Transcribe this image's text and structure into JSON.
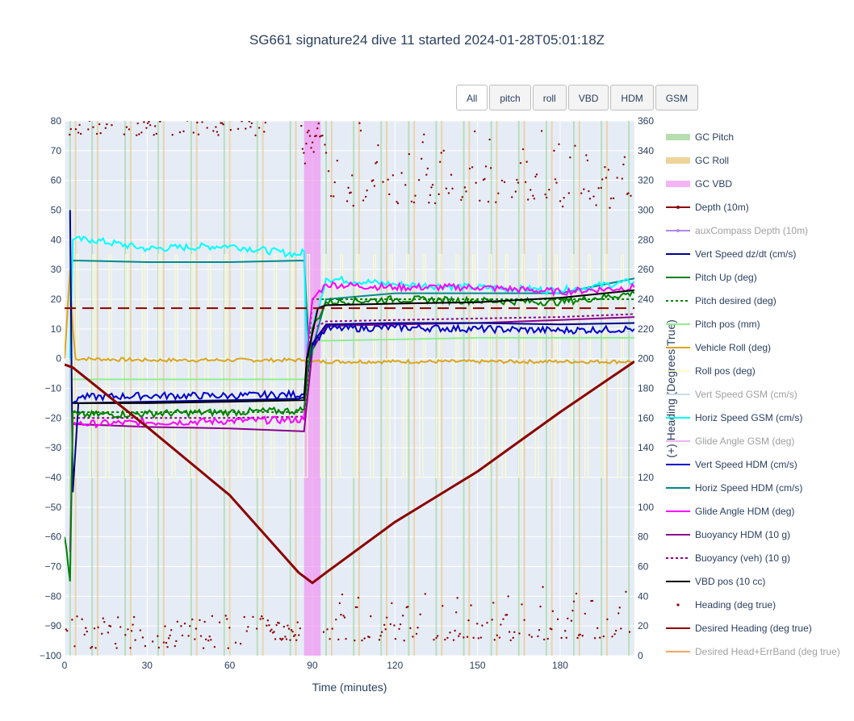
{
  "title": "SG661 signature24 dive 11 started 2024-01-28T05:01:18Z",
  "buttons": [
    "All",
    "pitch",
    "roll",
    "VBD",
    "HDM",
    "GSM"
  ],
  "chart_data": {
    "type": "line",
    "xlabel": "Time (minutes)",
    "ylabel": "",
    "y2label": "(+) Heading (Degrees True)",
    "xlim": [
      0,
      207
    ],
    "ylim": [
      -100,
      80
    ],
    "y2lim": [
      0,
      360
    ],
    "xticks": [
      "0",
      "30",
      "60",
      "90",
      "120",
      "150",
      "180"
    ],
    "xtick_values": [
      0,
      30,
      60,
      90,
      120,
      150,
      180
    ],
    "yticks": [
      "−100",
      "−90",
      "−80",
      "−70",
      "−60",
      "−50",
      "−40",
      "−30",
      "−20",
      "−10",
      "0",
      "10",
      "20",
      "30",
      "40",
      "50",
      "60",
      "70",
      "80"
    ],
    "ytick_values": [
      -100,
      -90,
      -80,
      -70,
      -60,
      -50,
      -40,
      -30,
      -20,
      -10,
      0,
      10,
      20,
      30,
      40,
      50,
      60,
      70,
      80
    ],
    "y2ticks": [
      "0",
      "20",
      "40",
      "60",
      "80",
      "100",
      "120",
      "140",
      "160",
      "180",
      "200",
      "220",
      "240",
      "260",
      "280",
      "300",
      "320",
      "340",
      "360"
    ],
    "y2tick_values": [
      0,
      20,
      40,
      60,
      80,
      100,
      120,
      140,
      160,
      180,
      200,
      220,
      240,
      260,
      280,
      300,
      320,
      340,
      360
    ],
    "grid": true,
    "legend_position": "right",
    "vbd_band": [
      87,
      93
    ],
    "series": [
      {
        "name": "GC Pitch",
        "color": "#a9d8a0",
        "style": "band",
        "x": [
          2,
          10,
          22,
          34,
          46,
          58,
          70,
          82,
          95,
          105,
          115,
          125,
          135,
          145,
          155,
          165,
          175,
          185,
          195,
          205
        ]
      },
      {
        "name": "GC Roll",
        "color": "#eccb8a",
        "style": "band",
        "x": [
          4,
          12,
          24,
          36,
          48,
          60,
          72,
          84,
          97,
          107,
          117,
          127,
          137,
          147,
          157,
          167,
          177,
          187,
          197
        ]
      },
      {
        "name": "GC VBD",
        "color": "#f08cf0",
        "style": "band",
        "x": [
          87,
          93
        ]
      },
      {
        "name": "Depth (10m)",
        "color": "#8b0000",
        "style": "line",
        "x": [
          0,
          3,
          30,
          60,
          85,
          90,
          95,
          120,
          150,
          180,
          207
        ],
        "y": [
          -2,
          -3,
          -23,
          -46,
          -72,
          -75.5,
          -72,
          -55,
          -38,
          -18,
          -1
        ]
      },
      {
        "name": "auxCompass Depth (10m)",
        "color": "#b088e8",
        "style": "line",
        "dim": true,
        "x": [
          0,
          3,
          30,
          60,
          85,
          90,
          95,
          120,
          150,
          180,
          207
        ],
        "y": [
          -2,
          -3,
          -23,
          -46,
          -72,
          -75.5,
          -72,
          -55,
          -38,
          -18,
          -1
        ]
      },
      {
        "name": "Vert Speed dz/dt (cm/s)",
        "color": "#00008b",
        "style": "line",
        "x": [
          2,
          3,
          5,
          30,
          60,
          85,
          87,
          88,
          90,
          95,
          120,
          150,
          180,
          207
        ],
        "y": [
          50,
          -45,
          -15,
          -14.5,
          -14,
          -13.5,
          -13,
          0,
          5,
          11.5,
          12,
          12,
          11.5,
          12
        ]
      },
      {
        "name": "Pitch Up (deg)",
        "color": "#008000",
        "style": "line",
        "x": [
          0,
          2,
          3,
          5,
          30,
          60,
          85,
          87,
          90,
          95,
          120,
          150,
          180,
          207
        ],
        "y": [
          -60,
          -75,
          -18,
          -19,
          -18.5,
          -18,
          -17.5,
          -17,
          10,
          19,
          20,
          19.5,
          19,
          22
        ]
      },
      {
        "name": "Pitch desired (deg)",
        "color": "#008000",
        "style": "dot",
        "x": [
          3,
          87,
          90,
          207
        ],
        "y": [
          -18,
          -18,
          20,
          20
        ]
      },
      {
        "name": "Pitch pos (mm)",
        "color": "#90ee90",
        "style": "line",
        "x": [
          3,
          87,
          92,
          150,
          207
        ],
        "y": [
          -7,
          -7,
          6,
          7,
          7
        ]
      },
      {
        "name": "Vehicle Roll (deg)",
        "color": "#daa520",
        "style": "line",
        "x": [
          0,
          2,
          3,
          4,
          30,
          60,
          87,
          90,
          120,
          150,
          180,
          207
        ],
        "y": [
          0,
          30,
          10,
          0,
          -0.5,
          -0.5,
          -0.5,
          -1,
          -1,
          -1,
          -1,
          -1
        ]
      },
      {
        "name": "Roll pos (deg)",
        "color": "#fafad2",
        "style": "line",
        "x": [
          0,
          207
        ],
        "y": [
          0,
          0
        ]
      },
      {
        "name": "Vert Speed GSM (cm/s)",
        "color": "#c8dcf0",
        "style": "line",
        "dim": true,
        "x": [
          3,
          87,
          92,
          207
        ],
        "y": [
          -15,
          -14,
          11,
          11
        ]
      },
      {
        "name": "Horiz Speed GSM (cm/s)",
        "color": "#00ffff",
        "style": "line",
        "x": [
          2,
          3,
          10,
          30,
          60,
          85,
          87,
          88,
          90,
          95,
          120,
          150,
          180,
          207
        ],
        "y": [
          0,
          40,
          40,
          37,
          38,
          35,
          36,
          0,
          10,
          27,
          25,
          24,
          23,
          26
        ]
      },
      {
        "name": "Glide Angle GSM (deg)",
        "color": "#f0b4f0",
        "style": "line",
        "dim": true,
        "x": [
          3,
          87,
          92,
          207
        ],
        "y": [
          -22,
          -21,
          24,
          24
        ]
      },
      {
        "name": "Vert Speed HDM (cm/s)",
        "color": "#0000cd",
        "style": "line",
        "x": [
          3,
          5,
          30,
          60,
          87,
          90,
          95,
          120,
          150,
          180,
          207
        ],
        "y": [
          -15,
          -13,
          -12.5,
          -12.5,
          -12,
          5,
          10,
          10.5,
          10,
          9.5,
          10
        ]
      },
      {
        "name": "Horiz Speed HDM (cm/s)",
        "color": "#008b8b",
        "style": "line",
        "x": [
          3,
          5,
          30,
          60,
          85,
          87,
          89,
          95,
          120,
          150,
          180,
          207
        ],
        "y": [
          33,
          33,
          32.5,
          32.5,
          33,
          33,
          0,
          20,
          22,
          22,
          22,
          27
        ]
      },
      {
        "name": "Glide Angle HDM (deg)",
        "color": "#ff00ff",
        "style": "line",
        "x": [
          2,
          3,
          5,
          30,
          60,
          87,
          88,
          90,
          95,
          120,
          150,
          180,
          207
        ],
        "y": [
          -65,
          -22,
          -22,
          -21.5,
          -21,
          -20.5,
          0,
          20,
          25,
          24,
          24,
          22.5,
          24
        ]
      },
      {
        "name": "Buoyancy HDM (10 g)",
        "color": "#8b008b",
        "style": "line",
        "x": [
          3,
          30,
          60,
          87,
          90,
          95,
          120,
          150,
          180,
          207
        ],
        "y": [
          -22,
          -23,
          -23.5,
          -24.5,
          3,
          11,
          11.5,
          12,
          13,
          14
        ]
      },
      {
        "name": "Buoyancy (veh) (10 g)",
        "color": "#8b008b",
        "style": "dot",
        "x": [
          3,
          30,
          60,
          87,
          90,
          95,
          120,
          150,
          180,
          207
        ],
        "y": [
          -20,
          -20,
          -20,
          -19.5,
          10,
          12.5,
          13,
          13.5,
          14,
          15
        ]
      },
      {
        "name": "VBD pos (10 cc)",
        "color": "#000000",
        "style": "line",
        "x": [
          3,
          5,
          30,
          60,
          87,
          88,
          92,
          95,
          120,
          150,
          180,
          207
        ],
        "y": [
          -15,
          -15,
          -15,
          -14.5,
          -14,
          0,
          17,
          18,
          18.5,
          19,
          20.5,
          23
        ]
      },
      {
        "name": "Heading (deg true)",
        "color": "#8b0000",
        "style": "markers",
        "axis": "y2"
      },
      {
        "name": "Desired Heading (deg true)",
        "color": "#8b0000",
        "style": "dash",
        "x": [
          0,
          207
        ],
        "y": [
          17,
          17
        ]
      },
      {
        "name": "Desired Head+ErrBand (deg true)",
        "color": "#f4a460",
        "style": "line",
        "dim": true
      }
    ]
  }
}
